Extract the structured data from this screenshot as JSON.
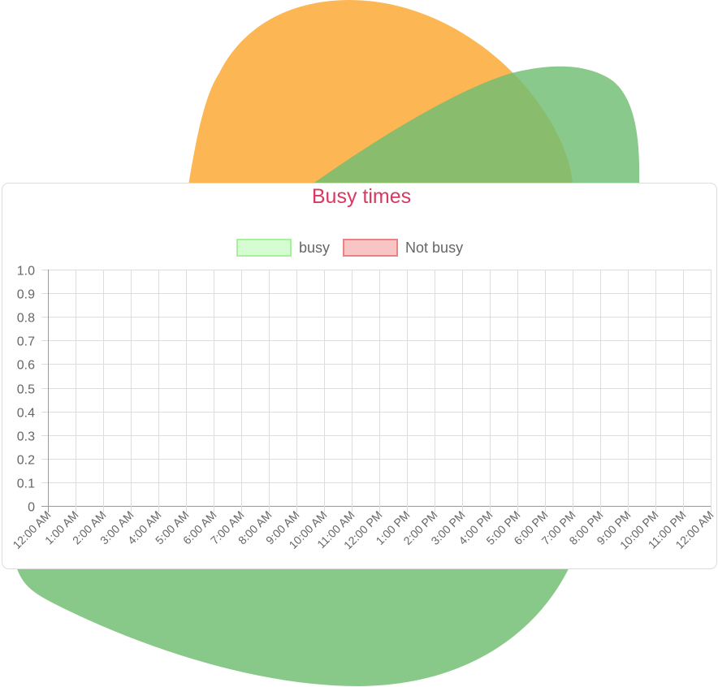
{
  "chart_data": {
    "type": "line",
    "title": "Busy times",
    "categories": [
      "12:00 AM",
      "1:00 AM",
      "2:00 AM",
      "3:00 AM",
      "4:00 AM",
      "5:00 AM",
      "6:00 AM",
      "7:00 AM",
      "8:00 AM",
      "9:00 AM",
      "10:00 AM",
      "11:00 AM",
      "12:00 PM",
      "1:00 PM",
      "2:00 PM",
      "3:00 PM",
      "4:00 PM",
      "5:00 PM",
      "6:00 PM",
      "7:00 PM",
      "8:00 PM",
      "9:00 PM",
      "10:00 PM",
      "11:00 PM",
      "12:00 AM"
    ],
    "series": [
      {
        "name": "busy",
        "color": "#a6f29a",
        "fill_color": "#d6fcd2",
        "values": [
          null,
          null,
          null,
          null,
          null,
          null,
          null,
          null,
          null,
          null,
          null,
          null,
          null,
          null,
          null,
          null,
          null,
          null,
          null,
          null,
          null,
          null,
          null,
          null,
          null
        ]
      },
      {
        "name": "Not busy",
        "color": "#e98383",
        "fill_color": "#f8c4c4",
        "values": [
          null,
          null,
          null,
          null,
          null,
          null,
          null,
          null,
          null,
          null,
          null,
          null,
          null,
          null,
          null,
          null,
          null,
          null,
          null,
          null,
          null,
          null,
          null,
          null,
          null
        ]
      }
    ],
    "ylim": [
      0,
      1
    ],
    "yticks": [
      0,
      0.1,
      0.2,
      0.3,
      0.4,
      0.5,
      0.6,
      0.7,
      0.8,
      0.9,
      {
        "value": 1,
        "label": "1.0"
      }
    ],
    "grid": true
  }
}
